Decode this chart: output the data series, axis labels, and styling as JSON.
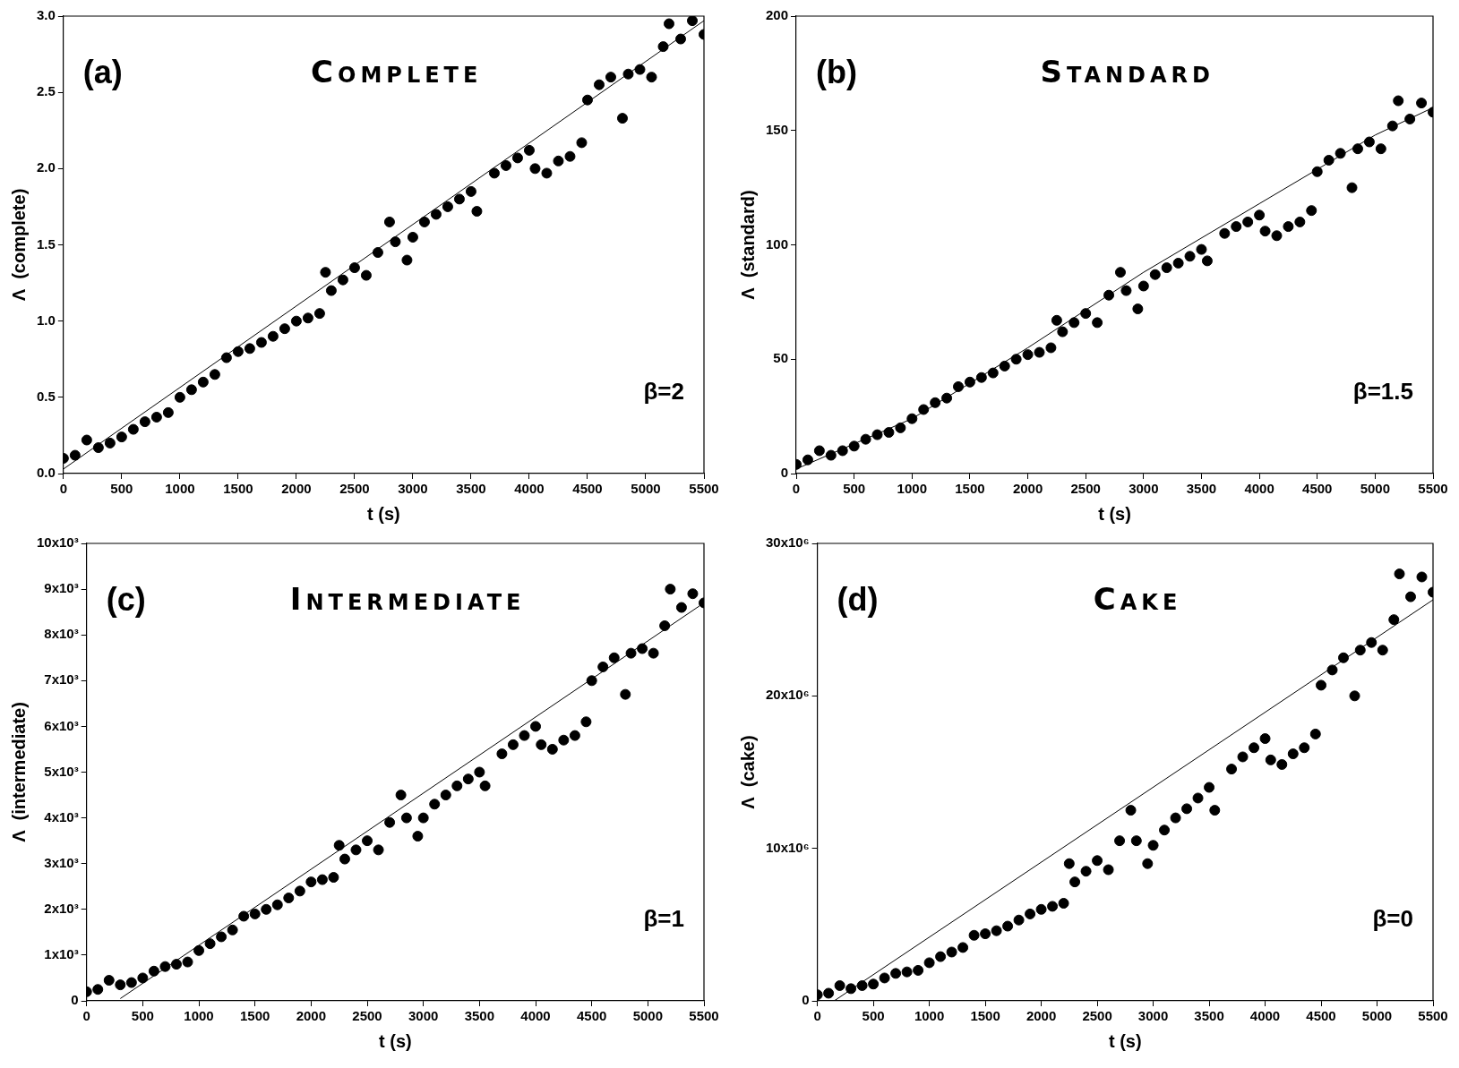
{
  "chart_data": [
    {
      "type": "scatter",
      "title": "Complete",
      "xlabel": "t (s)",
      "ylabel": "Λ  (complete)",
      "annotations": [
        "(a)",
        "β=2"
      ],
      "xlim": [
        0,
        5500
      ],
      "ylim": [
        0,
        3
      ],
      "xticks": [
        0,
        500,
        1000,
        1500,
        2000,
        2500,
        3000,
        3500,
        4000,
        4500,
        5000,
        5500
      ],
      "yticks": [
        {
          "value": 0,
          "label": "0.0"
        },
        0.5,
        {
          "value": 1,
          "label": "1.0"
        },
        1.5,
        {
          "value": 2,
          "label": "2.0"
        },
        2.5,
        {
          "value": 3,
          "label": "3.0"
        }
      ],
      "grid": false,
      "legend": false,
      "series": [
        {
          "type": "scatter",
          "marker": "circle",
          "color": "#000000",
          "x": [
            0,
            100,
            200,
            300,
            400,
            500,
            600,
            700,
            800,
            900,
            1000,
            1100,
            1200,
            1300,
            1400,
            1500,
            1600,
            1700,
            1800,
            1900,
            2000,
            2100,
            2200,
            2250,
            2300,
            2400,
            2500,
            2600,
            2700,
            2800,
            2850,
            2950,
            3000,
            3100,
            3200,
            3300,
            3400,
            3500,
            3550,
            3700,
            3800,
            3900,
            4000,
            4050,
            4150,
            4250,
            4350,
            4450,
            4500,
            4600,
            4700,
            4800,
            4850,
            4950,
            5050,
            5150,
            5200,
            5300,
            5400,
            5500
          ],
          "values": [
            0.1,
            0.12,
            0.22,
            0.17,
            0.2,
            0.24,
            0.29,
            0.34,
            0.37,
            0.4,
            0.5,
            0.55,
            0.6,
            0.65,
            0.76,
            0.8,
            0.82,
            0.86,
            0.9,
            0.95,
            1.0,
            1.02,
            1.05,
            1.32,
            1.2,
            1.27,
            1.35,
            1.3,
            1.45,
            1.65,
            1.52,
            1.4,
            1.55,
            1.65,
            1.7,
            1.75,
            1.8,
            1.85,
            1.72,
            1.97,
            2.02,
            2.07,
            2.12,
            2.0,
            1.97,
            2.05,
            2.08,
            2.17,
            2.45,
            2.55,
            2.6,
            2.33,
            2.62,
            2.65,
            2.6,
            2.8,
            2.95,
            2.85,
            2.97,
            2.88
          ]
        },
        {
          "type": "line",
          "marker": "none",
          "color": "#000000",
          "x": [
            0,
            5500
          ],
          "values": [
            0.03,
            2.97
          ]
        }
      ]
    },
    {
      "type": "scatter",
      "title": "Standard",
      "xlabel": "t (s)",
      "ylabel": "Λ  (standard)",
      "annotations": [
        "(b)",
        "β=1.5"
      ],
      "xlim": [
        0,
        5500
      ],
      "ylim": [
        0,
        200
      ],
      "xticks": [
        0,
        500,
        1000,
        1500,
        2000,
        2500,
        3000,
        3500,
        4000,
        4500,
        5000,
        5500
      ],
      "yticks": [
        0,
        50,
        100,
        150,
        200
      ],
      "grid": false,
      "legend": false,
      "series": [
        {
          "type": "scatter",
          "marker": "circle",
          "color": "#000000",
          "x": [
            0,
            100,
            200,
            300,
            400,
            500,
            600,
            700,
            800,
            900,
            1000,
            1100,
            1200,
            1300,
            1400,
            1500,
            1600,
            1700,
            1800,
            1900,
            2000,
            2100,
            2200,
            2250,
            2300,
            2400,
            2500,
            2600,
            2700,
            2800,
            2850,
            2950,
            3000,
            3100,
            3200,
            3300,
            3400,
            3500,
            3550,
            3700,
            3800,
            3900,
            4000,
            4050,
            4150,
            4250,
            4350,
            4450,
            4500,
            4600,
            4700,
            4800,
            4850,
            4950,
            5050,
            5150,
            5200,
            5300,
            5400,
            5500
          ],
          "values": [
            4,
            6,
            10,
            8,
            10,
            12,
            15,
            17,
            18,
            20,
            24,
            28,
            31,
            33,
            38,
            40,
            42,
            44,
            47,
            50,
            52,
            53,
            55,
            67,
            62,
            66,
            70,
            66,
            78,
            88,
            80,
            72,
            82,
            87,
            90,
            92,
            95,
            98,
            93,
            105,
            108,
            110,
            113,
            106,
            104,
            108,
            110,
            115,
            132,
            137,
            140,
            125,
            142,
            145,
            142,
            152,
            163,
            155,
            162,
            158
          ]
        },
        {
          "type": "line",
          "marker": "none",
          "color": "#000000",
          "x": [
            0,
            1000,
            2000,
            3000,
            4000,
            5000,
            5500
          ],
          "values": [
            2,
            24,
            55,
            88,
            118,
            148,
            160
          ]
        }
      ]
    },
    {
      "type": "scatter",
      "title": "Intermediate",
      "xlabel": "t (s)",
      "ylabel": "Λ  (intermediate)",
      "annotations": [
        "(c)",
        "β=1"
      ],
      "xlim": [
        0,
        5500
      ],
      "ylim": [
        0,
        10000
      ],
      "xticks": [
        0,
        500,
        1000,
        1500,
        2000,
        2500,
        3000,
        3500,
        4000,
        4500,
        5000,
        5500
      ],
      "yticks": [
        0,
        {
          "value": 1000,
          "label": "1x10³"
        },
        {
          "value": 2000,
          "label": "2x10³"
        },
        {
          "value": 3000,
          "label": "3x10³"
        },
        {
          "value": 4000,
          "label": "4x10³"
        },
        {
          "value": 5000,
          "label": "5x10³"
        },
        {
          "value": 6000,
          "label": "6x10³"
        },
        {
          "value": 7000,
          "label": "7x10³"
        },
        {
          "value": 8000,
          "label": "8x10³"
        },
        {
          "value": 9000,
          "label": "9x10³"
        },
        {
          "value": 10000,
          "label": "10x10³"
        }
      ],
      "grid": false,
      "legend": false,
      "series": [
        {
          "type": "scatter",
          "marker": "circle",
          "color": "#000000",
          "x": [
            0,
            100,
            200,
            300,
            400,
            500,
            600,
            700,
            800,
            900,
            1000,
            1100,
            1200,
            1300,
            1400,
            1500,
            1600,
            1700,
            1800,
            1900,
            2000,
            2100,
            2200,
            2250,
            2300,
            2400,
            2500,
            2600,
            2700,
            2800,
            2850,
            2950,
            3000,
            3100,
            3200,
            3300,
            3400,
            3500,
            3550,
            3700,
            3800,
            3900,
            4000,
            4050,
            4150,
            4250,
            4350,
            4450,
            4500,
            4600,
            4700,
            4800,
            4850,
            4950,
            5050,
            5150,
            5200,
            5300,
            5400,
            5500
          ],
          "values": [
            200,
            250,
            450,
            350,
            400,
            500,
            650,
            750,
            800,
            850,
            1100,
            1250,
            1400,
            1550,
            1850,
            1900,
            2000,
            2100,
            2250,
            2400,
            2600,
            2650,
            2700,
            3400,
            3100,
            3300,
            3500,
            3300,
            3900,
            4500,
            4000,
            3600,
            4000,
            4300,
            4500,
            4700,
            4850,
            5000,
            4700,
            5400,
            5600,
            5800,
            6000,
            5600,
            5500,
            5700,
            5800,
            6100,
            7000,
            7300,
            7500,
            6700,
            7600,
            7700,
            7600,
            8200,
            9000,
            8600,
            8900,
            8700
          ]
        },
        {
          "type": "line",
          "marker": "none",
          "color": "#000000",
          "x": [
            300,
            5500
          ],
          "values": [
            50,
            8700
          ]
        }
      ]
    },
    {
      "type": "scatter",
      "title": "Cake",
      "xlabel": "t (s)",
      "ylabel": "Λ  (cake)",
      "annotations": [
        "(d)",
        "β=0"
      ],
      "xlim": [
        0,
        5500
      ],
      "ylim": [
        0,
        30000000
      ],
      "xticks": [
        0,
        500,
        1000,
        1500,
        2000,
        2500,
        3000,
        3500,
        4000,
        4500,
        5000,
        5500
      ],
      "yticks": [
        0,
        {
          "value": 10000000,
          "label": "10x10⁶"
        },
        {
          "value": 20000000,
          "label": "20x10⁶"
        },
        {
          "value": 30000000,
          "label": "30x10⁶"
        }
      ],
      "grid": false,
      "legend": false,
      "series": [
        {
          "type": "scatter",
          "marker": "circle",
          "color": "#000000",
          "x": [
            0,
            100,
            200,
            300,
            400,
            500,
            600,
            700,
            800,
            900,
            1000,
            1100,
            1200,
            1300,
            1400,
            1500,
            1600,
            1700,
            1800,
            1900,
            2000,
            2100,
            2200,
            2250,
            2300,
            2400,
            2500,
            2600,
            2700,
            2800,
            2850,
            2950,
            3000,
            3100,
            3200,
            3300,
            3400,
            3500,
            3550,
            3700,
            3800,
            3900,
            4000,
            4050,
            4150,
            4250,
            4350,
            4450,
            4500,
            4600,
            4700,
            4800,
            4850,
            4950,
            5050,
            5150,
            5200,
            5300,
            5400,
            5500
          ],
          "values": [
            400000,
            500000,
            1000000,
            800000,
            1000000,
            1100000,
            1500000,
            1800000,
            1900000,
            2000000,
            2500000,
            2900000,
            3200000,
            3500000,
            4300000,
            4400000,
            4600000,
            4900000,
            5300000,
            5700000,
            6000000,
            6200000,
            6400000,
            9000000,
            7800000,
            8500000,
            9200000,
            8600000,
            10500000,
            12500000,
            10500000,
            9000000,
            10200000,
            11200000,
            12000000,
            12600000,
            13300000,
            14000000,
            12500000,
            15200000,
            16000000,
            16600000,
            17200000,
            15800000,
            15500000,
            16200000,
            16600000,
            17500000,
            20700000,
            21700000,
            22500000,
            20000000,
            23000000,
            23500000,
            23000000,
            25000000,
            28000000,
            26500000,
            27800000,
            26800000
          ]
        },
        {
          "type": "line",
          "marker": "none",
          "color": "#000000",
          "x": [
            150,
            5500
          ],
          "values": [
            0,
            26300000
          ]
        }
      ]
    }
  ]
}
